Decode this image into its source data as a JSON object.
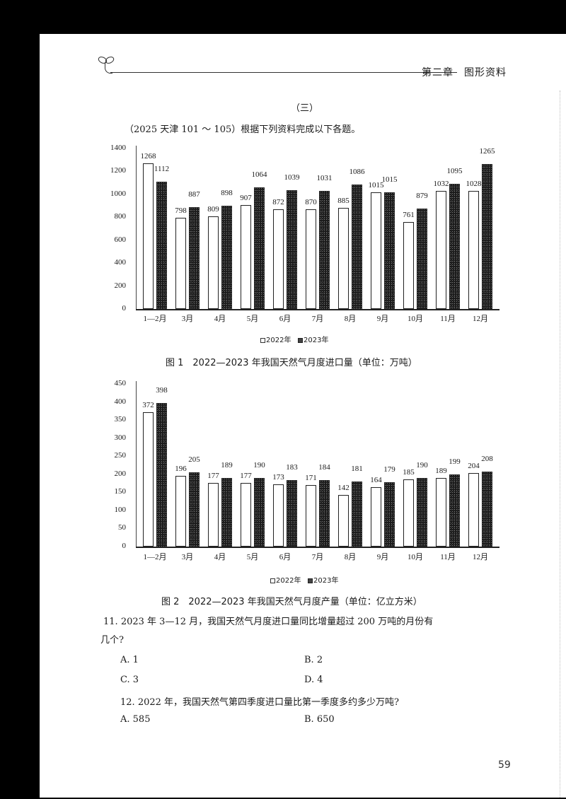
{
  "header": {
    "chapter": "第二章　图形资料",
    "icon": "sprout-icon"
  },
  "section": {
    "title": "（三）",
    "intro": "（2025 天津 101 ～ 105）根据下列资料完成以下各题。"
  },
  "chart_data": [
    {
      "type": "bar",
      "title": "图 1　2022—2023 年我国天然气月度进口量（单位：万吨）",
      "xlabel": "",
      "ylabel": "",
      "ylim": [
        0,
        1400
      ],
      "yticks": [
        0,
        200,
        400,
        600,
        800,
        1000,
        1200,
        1400
      ],
      "categories": [
        "1—2月",
        "3月",
        "4月",
        "5月",
        "6月",
        "7月",
        "8月",
        "9月",
        "10月",
        "11月",
        "12月"
      ],
      "series": [
        {
          "name": "2022年",
          "values": [
            1268,
            798,
            809,
            907,
            872,
            870,
            885,
            1015,
            761,
            1032,
            1028
          ]
        },
        {
          "name": "2023年",
          "values": [
            1112,
            887,
            898,
            1064,
            1039,
            1031,
            1086,
            1015,
            879,
            1095,
            1265
          ]
        }
      ],
      "legend": [
        "2022年",
        "2023年"
      ],
      "legend_position": "bottom",
      "grid": false
    },
    {
      "type": "bar",
      "title": "图 2　2022—2023 年我国天然气月度产量（单位：亿立方米）",
      "xlabel": "",
      "ylabel": "",
      "ylim": [
        0,
        450
      ],
      "yticks": [
        0,
        50,
        100,
        150,
        200,
        250,
        300,
        350,
        400,
        450
      ],
      "categories": [
        "1—2月",
        "3月",
        "4月",
        "5月",
        "6月",
        "7月",
        "8月",
        "9月",
        "10月",
        "11月",
        "12月"
      ],
      "series": [
        {
          "name": "2022年",
          "values": [
            372,
            196,
            177,
            177,
            173,
            171,
            142,
            164,
            185,
            189,
            204
          ]
        },
        {
          "name": "2023年",
          "values": [
            398,
            205,
            189,
            190,
            183,
            184,
            181,
            179,
            190,
            199,
            208
          ]
        }
      ],
      "legend": [
        "2022年",
        "2023年"
      ],
      "legend_position": "bottom",
      "grid": false
    }
  ],
  "questions": [
    {
      "number": "11.",
      "text": "2023 年 3—12 月，我国天然气月度进口量同比增量超过 200 万吨的月份有",
      "text_cont": "几个?",
      "options": [
        "A. 1",
        "B. 2",
        "C. 3",
        "D. 4"
      ]
    },
    {
      "number": "12.",
      "text": "2022 年，我国天然气第四季度进口量比第一季度多约多少万吨?",
      "options": [
        "A. 585",
        "B. 650"
      ]
    }
  ],
  "page_number": "59"
}
